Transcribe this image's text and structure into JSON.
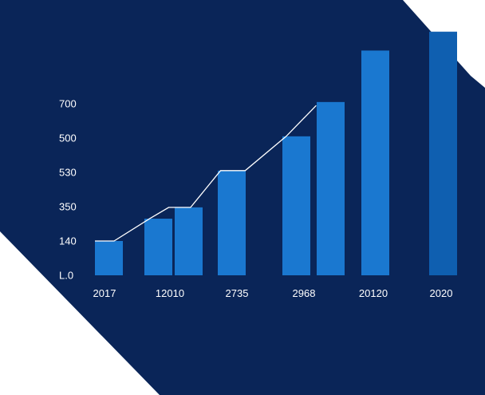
{
  "colors": {
    "background_panel": "#0a2558",
    "page": "#ffffff",
    "bar": "#1a78d0",
    "bar_last": "#0f5fb0",
    "line": "#ffffff",
    "text": "#ffffff"
  },
  "chart_data": {
    "type": "bar",
    "title": "",
    "xlabel": "",
    "ylabel": "",
    "y_tick_labels": [
      "L.0",
      "140",
      "350",
      "530",
      "500",
      "700"
    ],
    "x_tick_labels": [
      "2017",
      "12010",
      "2735",
      "2968",
      "20120",
      "2020"
    ],
    "y_tick_levels": [
      0,
      1,
      2,
      3,
      4,
      5
    ],
    "ylim": [
      0,
      7
    ],
    "grid": false,
    "legend": "none",
    "series": [
      {
        "values": [
          1.0,
          1.65,
          1.98,
          3.05,
          4.05,
          5.05,
          6.55,
          7.1
        ]
      }
    ],
    "overlay_line": {
      "points": [
        [
          0.0,
          1.0
        ],
        [
          0.35,
          1.0
        ],
        [
          1.0,
          1.65
        ],
        [
          1.35,
          1.98
        ],
        [
          1.75,
          1.98
        ],
        [
          2.3,
          3.05
        ],
        [
          2.75,
          3.05
        ],
        [
          3.5,
          4.05
        ],
        [
          4.05,
          4.95
        ]
      ]
    }
  }
}
